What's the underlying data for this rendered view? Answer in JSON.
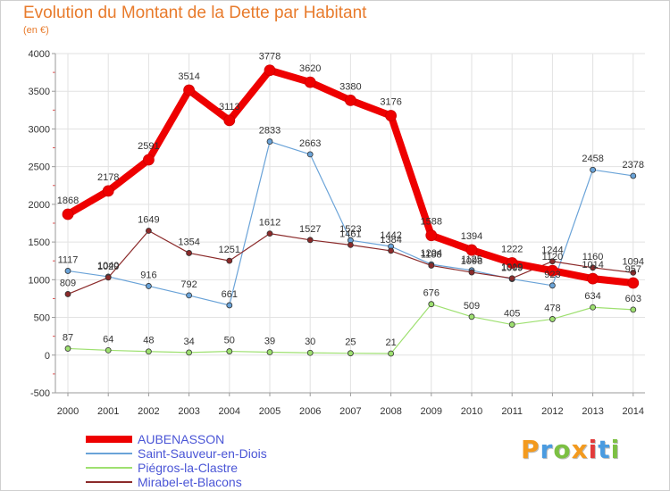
{
  "title": "Evolution du Montant de la Dette par Habitant",
  "subtitle": "(en €)",
  "logo": {
    "text": "Proxiti",
    "colors": [
      "#f39a1e",
      "#4a9be0",
      "#7cc043",
      "#f39a1e",
      "#e23b3b",
      "#4a9be0",
      "#7cc043"
    ]
  },
  "chart_data": {
    "type": "line",
    "x": [
      "2000",
      "2001",
      "2002",
      "2003",
      "2004",
      "2005",
      "2006",
      "2007",
      "2008",
      "2009",
      "2010",
      "2011",
      "2012",
      "2013",
      "2014"
    ],
    "ylim": [
      -500,
      4000
    ],
    "yticks": [
      "-500",
      "0",
      "500",
      "1000",
      "1500",
      "2000",
      "2500",
      "3000",
      "3500",
      "4000"
    ],
    "legend_position": "bottom-left",
    "series": [
      {
        "name": "AUBENASSON",
        "color": "#ee0000",
        "width": 8,
        "marker": 6,
        "values": [
          1868,
          2178,
          2591,
          3514,
          3113,
          3778,
          3620,
          3380,
          3176,
          1588,
          1394,
          1222,
          1120,
          1014,
          957
        ],
        "labels": [
          "1868",
          "2178",
          "2591",
          "3514",
          "3113",
          "3778",
          "3620",
          "3380",
          "3176",
          "1588",
          "1394",
          "1222",
          "1120",
          "1014",
          "957"
        ]
      },
      {
        "name": "Saint-Sauveur-en-Diois",
        "color": "#6aa3d8",
        "width": 1.2,
        "marker": 3,
        "values": [
          1117,
          1040,
          916,
          792,
          661,
          2833,
          2663,
          1523,
          1442,
          1204,
          1125,
          1009,
          923,
          2458,
          2378
        ],
        "labels": [
          "1117",
          "1040",
          "916",
          "792",
          "661",
          "2833",
          "2663",
          "1523",
          "1442",
          "1204",
          "1125",
          "1009",
          "923",
          "2458",
          "2378"
        ]
      },
      {
        "name": "Piégros-la-Clastre",
        "color": "#9ee070",
        "width": 1.2,
        "marker": 3,
        "values": [
          87,
          64,
          48,
          34,
          50,
          39,
          30,
          25,
          21,
          676,
          509,
          405,
          478,
          634,
          603
        ],
        "labels": [
          "87",
          "64",
          "48",
          "34",
          "50",
          "39",
          "30",
          "25",
          "21",
          "676",
          "509",
          "405",
          "478",
          "634",
          "603"
        ]
      },
      {
        "name": "Mirabel-et-Blacons",
        "color": "#8b2a2a",
        "width": 1.2,
        "marker": 3,
        "values": [
          809,
          1029,
          1649,
          1354,
          1251,
          1612,
          1527,
          1461,
          1384,
          1188,
          1098,
          1019,
          1244,
          1160,
          1094
        ],
        "labels": [
          "809",
          "1029",
          "1649",
          "1354",
          "1251",
          "1612",
          "1527",
          "1461",
          "1384",
          "1188",
          "1098",
          "1019",
          "1244",
          "1160",
          "1094"
        ]
      }
    ]
  }
}
